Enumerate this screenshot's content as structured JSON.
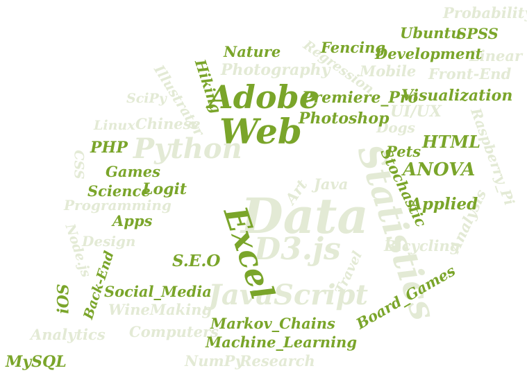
{
  "colors": {
    "highlight": "#7aa52a",
    "faded": "#e3ead5",
    "background": "#ffffff"
  },
  "words": {
    "probability": "Probability",
    "ubuntu": "Ubuntu",
    "spss": "SPSS",
    "linear": "Linear",
    "nature": "Nature",
    "fencing": "Fencing",
    "development": "Development",
    "regression": "Regression",
    "mobile": "Mobile",
    "front_end": "Front-End",
    "photography": "Photography",
    "hiking": "Hiking",
    "illustrator": "Illustrator",
    "adobe": "Adobe",
    "premiere_pro": "Premiere_Pro",
    "visualization": "Visualization",
    "scipy": "SciPy",
    "photoshop": "Photoshop",
    "ui_ux": "UI/UX",
    "linux": "Linux",
    "chinese": "Chinese",
    "web": "Web",
    "dogs": "Dogs",
    "raspberry_pi": "Raspberry_Pi",
    "php": "PHP",
    "python": "Python",
    "html": "HTML",
    "pets": "Pets",
    "css": "CSS",
    "games": "Games",
    "anova": "ANOVA",
    "stochastic": "Stochastic",
    "art": "Art",
    "java": "Java",
    "science": "Science",
    "logit": "Logit",
    "statistics": "Statistics",
    "programming": "Programming",
    "data": "Data",
    "applied": "Applied",
    "analysis": "Analysis",
    "apps": "Apps",
    "node_js": "Node.js",
    "design": "Design",
    "excel": "Excel",
    "d3_js": "D3.js",
    "bicycling": "Bicycling",
    "seo": "S.E.O",
    "back_end": "Back-End",
    "travel": "Travel",
    "ios": "iOS",
    "social_media": "Social_Media",
    "javascript": "JavaScript",
    "board_games": "Board_Games",
    "winemaking": "WineMaking",
    "analytics": "Analytics",
    "computers": "Computers",
    "markov_chains": "Markov_Chains",
    "machine_learning": "Machine_Learning",
    "numpy": "NumPy",
    "research": "Research",
    "mysql": "MySQL"
  }
}
